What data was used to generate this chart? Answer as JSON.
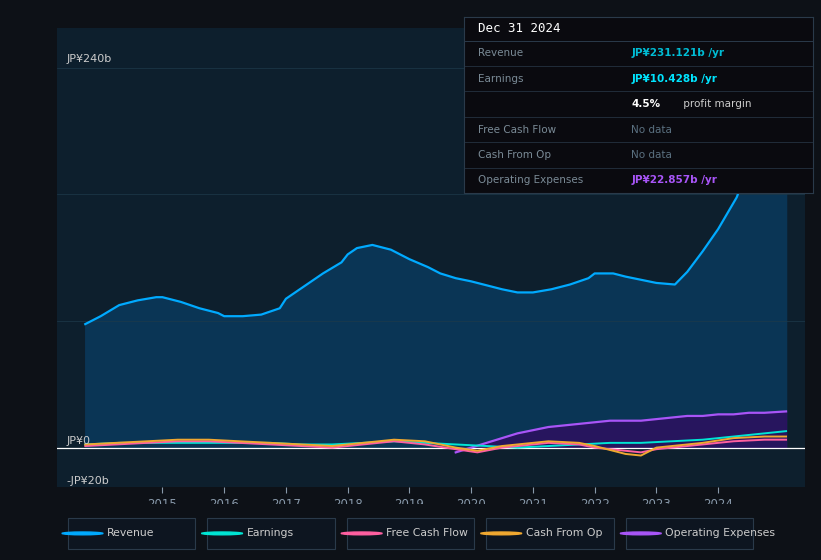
{
  "bg_color": "#0d1117",
  "plot_bg_color": "#0d1f2d",
  "ylabel_top": "JP¥240b",
  "ylabel_mid": "JP¥0",
  "ylabel_bot": "-JP¥20b",
  "ylim": [
    -25,
    265
  ],
  "xlim": [
    2013.3,
    2025.4
  ],
  "xticks": [
    2015,
    2016,
    2017,
    2018,
    2019,
    2020,
    2021,
    2022,
    2023,
    2024
  ],
  "hlines": [
    0,
    80,
    160,
    240
  ],
  "revenue": {
    "x": [
      2013.75,
      2014.0,
      2014.3,
      2014.6,
      2014.9,
      2015.0,
      2015.3,
      2015.6,
      2015.9,
      2016.0,
      2016.3,
      2016.6,
      2016.9,
      2017.0,
      2017.3,
      2017.6,
      2017.9,
      2018.0,
      2018.15,
      2018.4,
      2018.7,
      2019.0,
      2019.3,
      2019.5,
      2019.75,
      2020.0,
      2020.3,
      2020.5,
      2020.75,
      2021.0,
      2021.3,
      2021.6,
      2021.9,
      2022.0,
      2022.3,
      2022.5,
      2022.75,
      2023.0,
      2023.3,
      2023.5,
      2023.75,
      2024.0,
      2024.3,
      2024.6,
      2024.9,
      2025.1
    ],
    "y": [
      78,
      83,
      90,
      93,
      95,
      95,
      92,
      88,
      85,
      83,
      83,
      84,
      88,
      94,
      102,
      110,
      117,
      122,
      126,
      128,
      125,
      119,
      114,
      110,
      107,
      105,
      102,
      100,
      98,
      98,
      100,
      103,
      107,
      110,
      110,
      108,
      106,
      104,
      103,
      111,
      124,
      138,
      158,
      188,
      225,
      231
    ]
  },
  "earnings": {
    "x": [
      2013.75,
      2014.3,
      2014.75,
      2015.25,
      2015.75,
      2016.25,
      2016.75,
      2017.25,
      2017.75,
      2018.25,
      2018.75,
      2019.25,
      2019.75,
      2020.25,
      2020.75,
      2021.25,
      2021.75,
      2022.25,
      2022.75,
      2023.25,
      2023.75,
      2024.25,
      2024.75,
      2025.1
    ],
    "y": [
      2,
      3,
      3,
      3,
      3,
      3,
      3,
      2,
      2,
      3,
      4,
      3,
      2,
      1,
      0,
      1,
      2,
      3,
      3,
      4,
      5,
      7,
      9,
      10.4
    ]
  },
  "free_cash_flow": {
    "x": [
      2013.75,
      2014.25,
      2014.75,
      2015.25,
      2015.75,
      2016.25,
      2016.75,
      2017.25,
      2017.75,
      2018.25,
      2018.75,
      2019.25,
      2019.75,
      2020.1,
      2020.5,
      2020.75,
      2021.25,
      2021.75,
      2022.0,
      2022.5,
      2022.75,
      2023.0,
      2023.5,
      2023.75,
      2024.25,
      2024.75,
      2025.1
    ],
    "y": [
      1,
      2,
      3,
      4,
      4,
      3,
      2,
      1,
      0,
      2,
      4,
      2,
      -1,
      -3,
      0,
      1,
      3,
      2,
      0,
      -2,
      -3,
      -1,
      1,
      2,
      4,
      5,
      5
    ]
  },
  "cash_from_op": {
    "x": [
      2013.75,
      2014.25,
      2014.75,
      2015.25,
      2015.75,
      2016.25,
      2016.75,
      2017.25,
      2017.75,
      2018.25,
      2018.75,
      2019.25,
      2019.75,
      2020.1,
      2020.5,
      2020.75,
      2021.25,
      2021.75,
      2022.0,
      2022.5,
      2022.75,
      2023.0,
      2023.5,
      2023.75,
      2024.25,
      2024.75,
      2025.1
    ],
    "y": [
      2,
      3,
      4,
      5,
      5,
      4,
      3,
      2,
      1,
      3,
      5,
      4,
      0,
      -2,
      1,
      2,
      4,
      3,
      1,
      -4,
      -5,
      0,
      2,
      3,
      6,
      7,
      7
    ]
  },
  "operating_expenses": {
    "x": [
      2019.75,
      2020.0,
      2020.25,
      2020.5,
      2020.75,
      2021.0,
      2021.25,
      2021.5,
      2021.75,
      2022.0,
      2022.25,
      2022.5,
      2022.75,
      2023.0,
      2023.25,
      2023.5,
      2023.75,
      2024.0,
      2024.25,
      2024.5,
      2024.75,
      2025.1
    ],
    "y": [
      -3,
      0,
      3,
      6,
      9,
      11,
      13,
      14,
      15,
      16,
      17,
      17,
      17,
      18,
      19,
      20,
      20,
      21,
      21,
      22,
      22,
      22.857
    ]
  },
  "colors": {
    "revenue": "#00aaff",
    "revenue_fill": "#0a3555",
    "earnings": "#00e5d4",
    "free_cash_flow": "#ff5fa0",
    "cash_from_op": "#f0a830",
    "operating_expenses": "#a855f7",
    "operating_expenses_fill": "#2d1060"
  },
  "legend": [
    {
      "label": "Revenue",
      "color": "#00aaff"
    },
    {
      "label": "Earnings",
      "color": "#00e5d4"
    },
    {
      "label": "Free Cash Flow",
      "color": "#ff5fa0"
    },
    {
      "label": "Cash From Op",
      "color": "#f0a830"
    },
    {
      "label": "Operating Expenses",
      "color": "#a855f7"
    }
  ],
  "infobox": {
    "date": "Dec 31 2024",
    "rows": [
      {
        "label": "Revenue",
        "value": "JP¥231.121b /yr",
        "value_color": "#00bcd4",
        "extra": null
      },
      {
        "label": "Earnings",
        "value": "JP¥10.428b /yr",
        "value_color": "#00e5ff",
        "extra": null
      },
      {
        "label": "",
        "value": "4.5%",
        "value_color": "#ffffff",
        "extra": " profit margin"
      },
      {
        "label": "Free Cash Flow",
        "value": "No data",
        "value_color": "#5a7080",
        "extra": null
      },
      {
        "label": "Cash From Op",
        "value": "No data",
        "value_color": "#5a7080",
        "extra": null
      },
      {
        "label": "Operating Expenses",
        "value": "JP¥22.857b /yr",
        "value_color": "#a855f7",
        "extra": null
      }
    ]
  }
}
